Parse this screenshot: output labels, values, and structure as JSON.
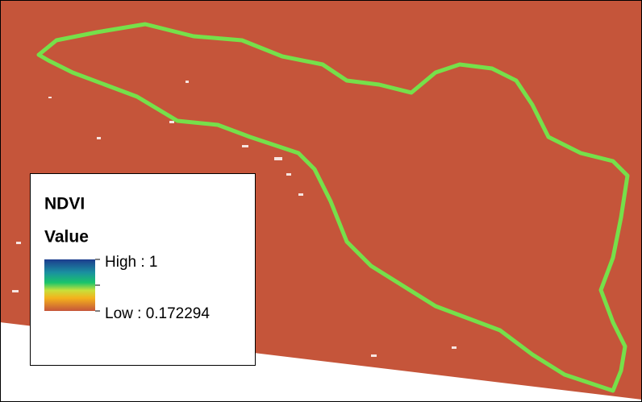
{
  "legend": {
    "title": "NDVI",
    "field": "Value",
    "high_label": "High : 1",
    "low_label": "Low : 0.172294"
  }
}
